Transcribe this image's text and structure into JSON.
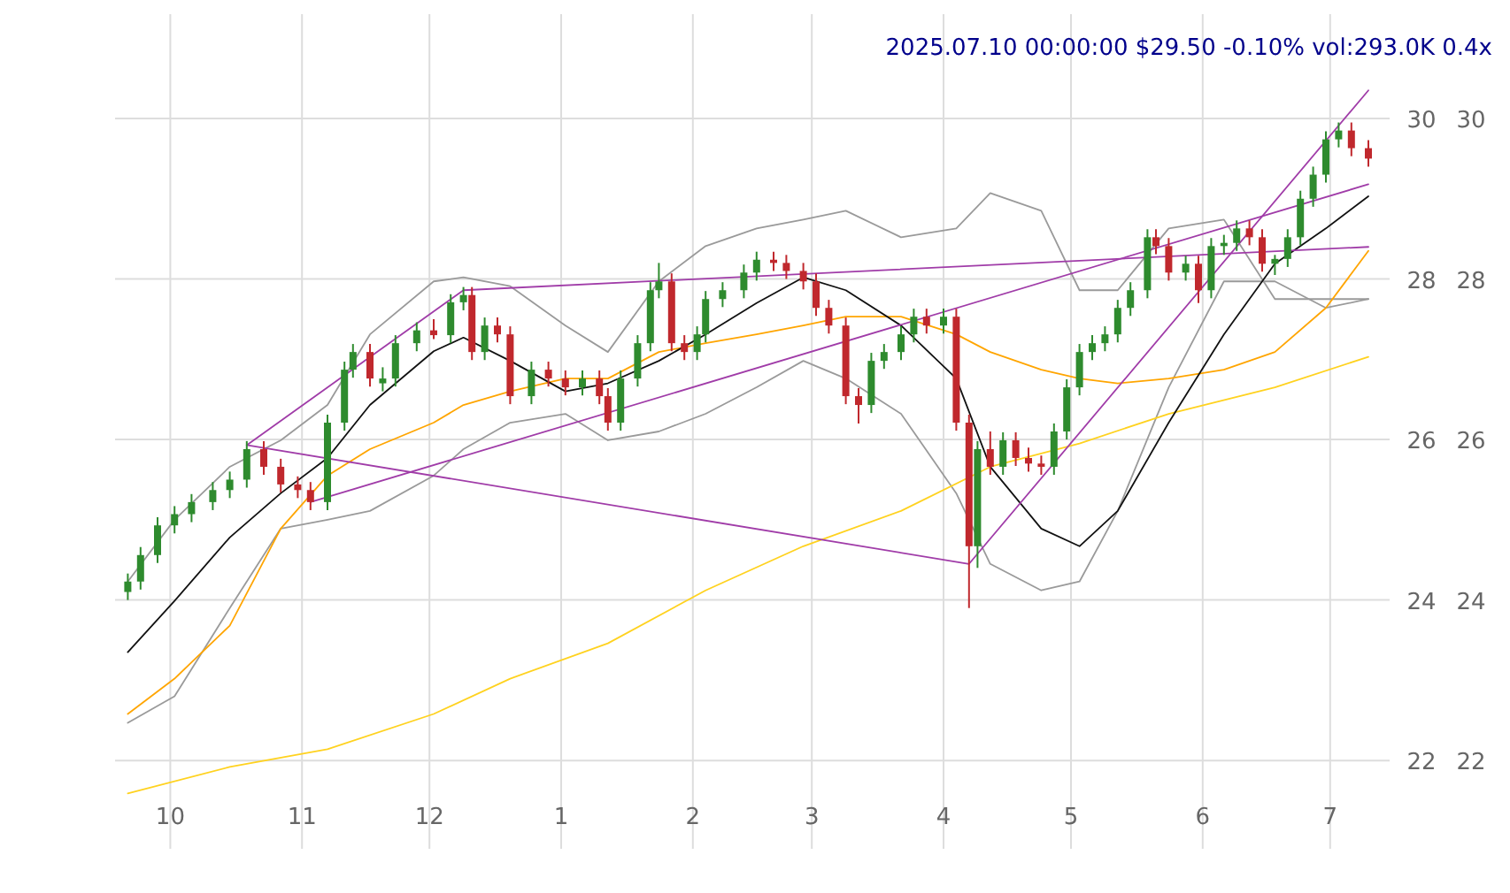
{
  "chart_data": {
    "type": "candlestick",
    "title": "2025.07.10 00:00:00 $29.50 -0.10% vol:293.0K 0.4x",
    "x": [
      "2024-09-21",
      "2024-09-24",
      "2024-09-28",
      "2024-10-02",
      "2024-10-06",
      "2024-10-11",
      "2024-10-15",
      "2024-10-19",
      "2024-10-23",
      "2024-10-27",
      "2024-10-31",
      "2024-11-03",
      "2024-11-07",
      "2024-11-11",
      "2024-11-13",
      "2024-11-17",
      "2024-11-20",
      "2024-11-23",
      "2024-11-28",
      "2024-12-02",
      "2024-12-06",
      "2024-12-09",
      "2024-12-11",
      "2024-12-14",
      "2024-12-17",
      "2024-12-20",
      "2024-12-25",
      "2024-12-29",
      "2025-01-02",
      "2025-01-06",
      "2025-01-10",
      "2025-01-12",
      "2025-01-15",
      "2025-01-19",
      "2025-01-22",
      "2025-01-24",
      "2025-01-27",
      "2025-01-30",
      "2025-02-02",
      "2025-02-04",
      "2025-02-08",
      "2025-02-13",
      "2025-02-16",
      "2025-02-20",
      "2025-02-23",
      "2025-02-27",
      "2025-03-02",
      "2025-03-05",
      "2025-03-09",
      "2025-03-12",
      "2025-03-15",
      "2025-03-18",
      "2025-03-22",
      "2025-03-25",
      "2025-03-28",
      "2025-04-01",
      "2025-04-04",
      "2025-04-07",
      "2025-04-09",
      "2025-04-12",
      "2025-04-15",
      "2025-04-18",
      "2025-04-21",
      "2025-04-24",
      "2025-04-27",
      "2025-04-30",
      "2025-05-03",
      "2025-05-06",
      "2025-05-09",
      "2025-05-12",
      "2025-05-15",
      "2025-05-19",
      "2025-05-21",
      "2025-05-24",
      "2025-05-28",
      "2025-05-31",
      "2025-06-03",
      "2025-06-06",
      "2025-06-09",
      "2025-06-12",
      "2025-06-15",
      "2025-06-18",
      "2025-06-21",
      "2025-06-24",
      "2025-06-27",
      "2025-06-30",
      "2025-07-03",
      "2025-07-06",
      "2025-07-10"
    ],
    "ohlc": [
      [
        24.1,
        24.33,
        24.0,
        24.23
      ],
      [
        24.23,
        24.66,
        24.13,
        24.56
      ],
      [
        24.56,
        25.03,
        24.46,
        24.93
      ],
      [
        24.93,
        25.17,
        24.83,
        25.07
      ],
      [
        25.07,
        25.32,
        24.97,
        25.22
      ],
      [
        25.22,
        25.47,
        25.12,
        25.37
      ],
      [
        25.37,
        25.6,
        25.27,
        25.5
      ],
      [
        25.5,
        25.98,
        25.4,
        25.88
      ],
      [
        25.88,
        25.98,
        25.56,
        25.66
      ],
      [
        25.66,
        25.76,
        25.34,
        25.44
      ],
      [
        25.44,
        25.54,
        25.27,
        25.37
      ],
      [
        25.37,
        25.47,
        25.12,
        25.22
      ],
      [
        25.22,
        26.31,
        25.12,
        26.21
      ],
      [
        26.21,
        26.97,
        26.11,
        26.87
      ],
      [
        26.87,
        27.19,
        26.77,
        27.09
      ],
      [
        27.09,
        27.19,
        26.66,
        26.76
      ],
      [
        26.7,
        26.9,
        26.6,
        26.76
      ],
      [
        26.76,
        27.3,
        26.66,
        27.2
      ],
      [
        27.2,
        27.46,
        27.1,
        27.36
      ],
      [
        27.36,
        27.5,
        27.25,
        27.3
      ],
      [
        27.3,
        27.81,
        27.2,
        27.71
      ],
      [
        27.71,
        27.9,
        27.61,
        27.8
      ],
      [
        27.8,
        27.9,
        26.99,
        27.09
      ],
      [
        27.09,
        27.52,
        26.99,
        27.42
      ],
      [
        27.42,
        27.52,
        27.21,
        27.31
      ],
      [
        27.31,
        27.41,
        26.44,
        26.54
      ],
      [
        26.54,
        26.97,
        26.44,
        26.87
      ],
      [
        26.87,
        26.97,
        26.66,
        26.76
      ],
      [
        26.76,
        26.86,
        26.55,
        26.65
      ],
      [
        26.65,
        26.86,
        26.55,
        26.76
      ],
      [
        26.76,
        26.86,
        26.44,
        26.54
      ],
      [
        26.54,
        26.64,
        26.11,
        26.21
      ],
      [
        26.21,
        26.86,
        26.11,
        26.76
      ],
      [
        26.76,
        27.3,
        26.66,
        27.2
      ],
      [
        27.2,
        27.96,
        27.1,
        27.86
      ],
      [
        27.86,
        28.2,
        27.76,
        27.97
      ],
      [
        27.97,
        28.07,
        27.1,
        27.2
      ],
      [
        27.2,
        27.3,
        26.99,
        27.09
      ],
      [
        27.09,
        27.41,
        26.99,
        27.31
      ],
      [
        27.31,
        27.85,
        27.21,
        27.75
      ],
      [
        27.75,
        27.96,
        27.65,
        27.86
      ],
      [
        27.86,
        28.18,
        27.76,
        28.08
      ],
      [
        28.08,
        28.34,
        27.98,
        28.24
      ],
      [
        28.24,
        28.34,
        28.1,
        28.2
      ],
      [
        28.2,
        28.3,
        28.0,
        28.1
      ],
      [
        28.1,
        28.2,
        27.87,
        27.97
      ],
      [
        27.97,
        28.07,
        27.54,
        27.64
      ],
      [
        27.64,
        27.74,
        27.32,
        27.42
      ],
      [
        27.42,
        27.52,
        26.44,
        26.54
      ],
      [
        26.54,
        26.64,
        26.2,
        26.43
      ],
      [
        26.43,
        27.08,
        26.33,
        26.98
      ],
      [
        26.98,
        27.19,
        26.88,
        27.09
      ],
      [
        27.09,
        27.41,
        26.99,
        27.31
      ],
      [
        27.31,
        27.63,
        27.21,
        27.53
      ],
      [
        27.53,
        27.63,
        27.32,
        27.42
      ],
      [
        27.42,
        27.63,
        27.32,
        27.53
      ],
      [
        27.53,
        27.63,
        26.11,
        26.21
      ],
      [
        26.21,
        26.31,
        23.9,
        24.67
      ],
      [
        24.67,
        25.98,
        24.4,
        25.88
      ],
      [
        25.88,
        26.1,
        25.56,
        25.66
      ],
      [
        25.66,
        26.09,
        25.56,
        25.99
      ],
      [
        25.99,
        26.09,
        25.67,
        25.77
      ],
      [
        25.77,
        25.9,
        25.6,
        25.7
      ],
      [
        25.7,
        25.8,
        25.56,
        25.66
      ],
      [
        25.66,
        26.2,
        25.56,
        26.1
      ],
      [
        26.1,
        26.75,
        26.0,
        26.65
      ],
      [
        26.65,
        27.19,
        26.55,
        27.09
      ],
      [
        27.09,
        27.3,
        26.99,
        27.2
      ],
      [
        27.2,
        27.41,
        27.1,
        27.31
      ],
      [
        27.31,
        27.74,
        27.21,
        27.64
      ],
      [
        27.64,
        27.96,
        27.54,
        27.86
      ],
      [
        27.86,
        28.62,
        27.76,
        28.52
      ],
      [
        28.52,
        28.62,
        28.31,
        28.41
      ],
      [
        28.41,
        28.51,
        27.98,
        28.08
      ],
      [
        28.08,
        28.29,
        27.98,
        28.19
      ],
      [
        28.19,
        28.29,
        27.7,
        27.86
      ],
      [
        27.86,
        28.51,
        27.76,
        28.41
      ],
      [
        28.41,
        28.55,
        28.3,
        28.45
      ],
      [
        28.45,
        28.73,
        28.35,
        28.63
      ],
      [
        28.63,
        28.73,
        28.42,
        28.52
      ],
      [
        28.52,
        28.62,
        28.09,
        28.19
      ],
      [
        28.19,
        28.3,
        28.05,
        28.25
      ],
      [
        28.25,
        28.62,
        28.15,
        28.52
      ],
      [
        28.52,
        29.1,
        28.42,
        29.0
      ],
      [
        29.0,
        29.4,
        28.9,
        29.3
      ],
      [
        29.3,
        29.84,
        29.2,
        29.74
      ],
      [
        29.74,
        29.95,
        29.64,
        29.85
      ],
      [
        29.85,
        29.95,
        29.53,
        29.63
      ],
      [
        29.63,
        29.73,
        29.4,
        29.5
      ]
    ],
    "series": [
      {
        "type": "line",
        "color": "#9a9a9a",
        "x": [
          "2024-09-21",
          "2024-10-02",
          "2024-10-15",
          "2024-10-27",
          "2024-11-07",
          "2024-11-17",
          "2024-12-02",
          "2024-12-09",
          "2024-12-20",
          "2025-01-02",
          "2025-01-12",
          "2025-01-24",
          "2025-02-04",
          "2025-02-16",
          "2025-02-27",
          "2025-03-09",
          "2025-03-22",
          "2025-04-04",
          "2025-04-12",
          "2025-04-24",
          "2025-05-03",
          "2025-05-12",
          "2025-05-24",
          "2025-06-06",
          "2025-06-18",
          "2025-06-30",
          "2025-07-10"
        ],
        "values": [
          24.23,
          25.0,
          25.66,
          25.99,
          26.43,
          27.31,
          27.97,
          28.02,
          27.91,
          27.42,
          27.09,
          27.97,
          28.41,
          28.63,
          28.74,
          28.85,
          28.52,
          28.63,
          29.07,
          28.85,
          27.86,
          27.86,
          28.63,
          28.74,
          27.75,
          27.75,
          27.75
        ]
      },
      {
        "type": "line",
        "color": "#9a9a9a",
        "x": [
          "2024-09-21",
          "2024-10-02",
          "2024-10-15",
          "2024-10-27",
          "2024-11-07",
          "2024-11-17",
          "2024-12-02",
          "2024-12-09",
          "2024-12-20",
          "2025-01-02",
          "2025-01-12",
          "2025-01-24",
          "2025-02-04",
          "2025-02-16",
          "2025-02-27",
          "2025-03-09",
          "2025-03-22",
          "2025-04-04",
          "2025-04-12",
          "2025-04-24",
          "2025-05-03",
          "2025-05-12",
          "2025-05-24",
          "2025-06-06",
          "2025-06-18",
          "2025-06-30",
          "2025-07-10"
        ],
        "values": [
          22.47,
          22.8,
          23.9,
          24.89,
          25.0,
          25.11,
          25.55,
          25.88,
          26.21,
          26.32,
          25.99,
          26.1,
          26.32,
          26.65,
          26.98,
          26.76,
          26.32,
          25.33,
          24.45,
          24.12,
          24.23,
          25.11,
          26.65,
          27.97,
          27.97,
          27.64,
          27.75
        ]
      },
      {
        "type": "line",
        "color": "#ffd21f",
        "x": [
          "2024-09-21",
          "2024-10-15",
          "2024-11-07",
          "2024-12-02",
          "2024-12-20",
          "2025-01-12",
          "2025-02-04",
          "2025-02-27",
          "2025-03-22",
          "2025-04-12",
          "2025-05-03",
          "2025-05-24",
          "2025-06-18",
          "2025-07-10"
        ],
        "values": [
          21.59,
          21.92,
          22.14,
          22.58,
          23.02,
          23.46,
          24.12,
          24.67,
          25.11,
          25.66,
          25.95,
          26.32,
          26.65,
          27.03
        ]
      },
      {
        "type": "line",
        "color": "#ffa500",
        "x": [
          "2024-09-21",
          "2024-10-02",
          "2024-10-15",
          "2024-10-27",
          "2024-11-07",
          "2024-11-17",
          "2024-12-02",
          "2024-12-09",
          "2024-12-20",
          "2025-01-02",
          "2025-01-12",
          "2025-01-24",
          "2025-02-04",
          "2025-02-16",
          "2025-02-27",
          "2025-03-09",
          "2025-03-22",
          "2025-04-04",
          "2025-04-12",
          "2025-04-24",
          "2025-05-03",
          "2025-05-12",
          "2025-05-24",
          "2025-06-06",
          "2025-06-18",
          "2025-06-30",
          "2025-07-10"
        ],
        "values": [
          22.58,
          23.02,
          23.68,
          24.89,
          25.55,
          25.88,
          26.21,
          26.43,
          26.6,
          26.76,
          26.76,
          27.09,
          27.2,
          27.31,
          27.42,
          27.53,
          27.53,
          27.31,
          27.09,
          26.87,
          26.76,
          26.7,
          26.76,
          26.87,
          27.09,
          27.64,
          28.35
        ]
      },
      {
        "type": "line",
        "color": "#111111",
        "x": [
          "2024-09-21",
          "2024-10-02",
          "2024-10-15",
          "2024-10-27",
          "2024-11-07",
          "2024-11-17",
          "2024-12-02",
          "2024-12-09",
          "2024-12-20",
          "2025-01-02",
          "2025-01-12",
          "2025-01-24",
          "2025-02-04",
          "2025-02-16",
          "2025-02-27",
          "2025-03-09",
          "2025-03-22",
          "2025-04-04",
          "2025-04-12",
          "2025-04-24",
          "2025-05-03",
          "2025-05-12",
          "2025-05-24",
          "2025-06-06",
          "2025-06-18",
          "2025-06-30",
          "2025-07-10"
        ],
        "values": [
          23.35,
          23.99,
          24.78,
          25.33,
          25.77,
          26.43,
          27.1,
          27.27,
          26.98,
          26.6,
          26.7,
          26.98,
          27.31,
          27.7,
          28.02,
          27.86,
          27.42,
          26.76,
          25.66,
          24.89,
          24.67,
          25.11,
          26.21,
          27.31,
          28.19,
          28.63,
          29.03
        ]
      },
      {
        "type": "line",
        "color": "#a03ca8",
        "x": [
          "2024-10-19",
          "2025-04-07",
          "2025-07-10"
        ],
        "values": [
          25.93,
          24.45,
          30.35
        ]
      },
      {
        "type": "line",
        "color": "#a03ca8",
        "x": [
          "2024-11-03",
          "2025-07-10"
        ],
        "values": [
          25.22,
          29.18
        ]
      },
      {
        "type": "line",
        "color": "#a03ca8",
        "x": [
          "2024-10-19",
          "2024-12-09",
          "2025-07-10"
        ],
        "values": [
          25.93,
          27.86,
          28.4
        ]
      }
    ],
    "xlim": [
      "2024-09-18",
      "2025-07-15"
    ],
    "xticks": [
      {
        "value": "2024-10-01",
        "label": "10"
      },
      {
        "value": "2024-11-01",
        "label": "11"
      },
      {
        "value": "2024-12-01",
        "label": "12"
      },
      {
        "value": "2025-01-01",
        "label": "1"
      },
      {
        "value": "2025-02-01",
        "label": "2"
      },
      {
        "value": "2025-03-01",
        "label": "3"
      },
      {
        "value": "2025-04-01",
        "label": "4"
      },
      {
        "value": "2025-05-01",
        "label": "5"
      },
      {
        "value": "2025-06-01",
        "label": "6"
      },
      {
        "value": "2025-07-01",
        "label": "7"
      }
    ],
    "ylim": [
      20.9,
      31.3
    ],
    "yticks": [
      22,
      24,
      26,
      28,
      30
    ],
    "y2lim": [
      20.9,
      31.3
    ],
    "y2ticks": [
      22,
      24,
      26,
      28,
      30
    ],
    "grid": true
  }
}
